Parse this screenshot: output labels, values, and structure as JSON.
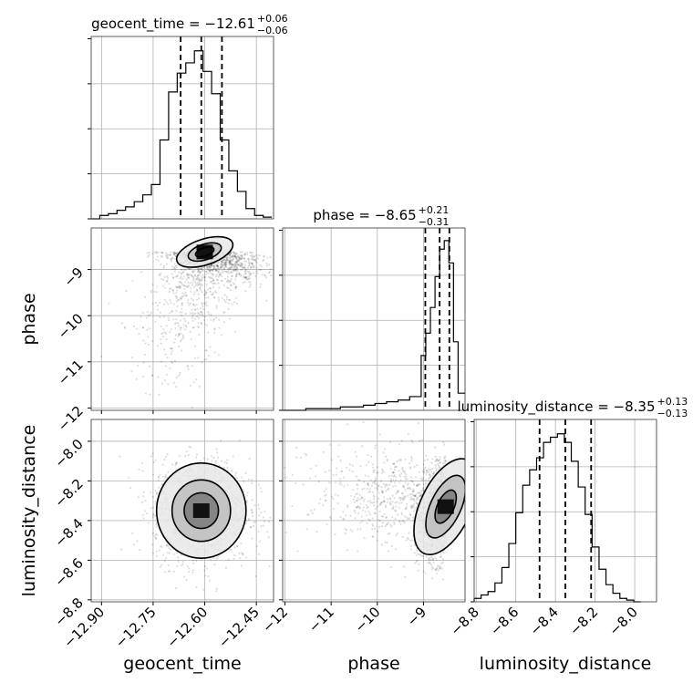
{
  "chart_data": {
    "type": "corner",
    "parameters": [
      "geocent_time",
      "phase",
      "luminosity_distance"
    ],
    "titles": [
      {
        "parameter": "geocent_time",
        "text": "geocent_time = −12.61",
        "plus": "+0.06",
        "minus": "−0.06"
      },
      {
        "parameter": "phase",
        "text": "phase = −8.65",
        "plus": "+0.21",
        "minus": "−0.31"
      },
      {
        "parameter": "luminosity_distance",
        "text": "luminosity_distance = −8.35",
        "plus": "+0.13",
        "minus": "−0.13"
      }
    ],
    "ranges": {
      "geocent_time": [
        -12.93,
        -12.4
      ],
      "phase": [
        -12.05,
        -8.1
      ],
      "luminosity_distance": [
        -8.81,
        -7.89
      ]
    },
    "ticks": {
      "geocent_time": [
        -12.9,
        -12.75,
        -12.6,
        -12.45
      ],
      "phase": [
        -12,
        -11,
        -10,
        -9
      ],
      "luminosity_distance": [
        -8.8,
        -8.6,
        -8.4,
        -8.2,
        -8.0
      ]
    },
    "tick_labels": {
      "geocent_time": [
        "−12.90",
        "−12.75",
        "−12.60",
        "−12.45"
      ],
      "phase": [
        "−12",
        "−11",
        "−10",
        "−9"
      ],
      "luminosity_distance": [
        "−8.8",
        "−8.6",
        "−8.4",
        "−8.2",
        "−8.0"
      ]
    },
    "axis_labels": {
      "geocent_time": "geocent_time",
      "phase": "phase",
      "luminosity_distance": "luminosity_distance"
    },
    "quantiles": {
      "geocent_time": [
        -12.67,
        -12.61,
        -12.55
      ],
      "phase": [
        -8.96,
        -8.65,
        -8.44
      ],
      "luminosity_distance": [
        -8.48,
        -8.35,
        -8.22
      ]
    },
    "histograms": {
      "geocent_time": {
        "edges": [
          -12.93,
          -12.905,
          -12.88,
          -12.855,
          -12.83,
          -12.805,
          -12.78,
          -12.755,
          -12.73,
          -12.705,
          -12.68,
          -12.655,
          -12.63,
          -12.605,
          -12.58,
          -12.555,
          -12.53,
          -12.505,
          -12.48,
          -12.455,
          -12.43,
          -12.405
        ],
        "counts": [
          0,
          0.02,
          0.03,
          0.05,
          0.07,
          0.1,
          0.14,
          0.2,
          0.46,
          0.74,
          0.85,
          0.91,
          0.98,
          0.86,
          0.73,
          0.46,
          0.28,
          0.16,
          0.06,
          0.02,
          0.01
        ]
      },
      "phase": {
        "edges": [
          -12.05,
          -11.8,
          -11.55,
          -11.3,
          -11.05,
          -10.8,
          -10.55,
          -10.3,
          -10.05,
          -9.8,
          -9.55,
          -9.3,
          -9.05,
          -8.95,
          -8.85,
          -8.75,
          -8.65,
          -8.55,
          -8.45,
          -8.35,
          -8.25,
          -8.1
        ],
        "counts": [
          0,
          0,
          0.01,
          0.01,
          0.01,
          0.02,
          0.02,
          0.03,
          0.04,
          0.05,
          0.06,
          0.08,
          0.32,
          0.45,
          0.6,
          0.78,
          0.94,
          0.99,
          0.86,
          0.4,
          0.1
        ]
      },
      "luminosity_distance": {
        "edges": [
          -8.81,
          -8.775,
          -8.74,
          -8.705,
          -8.67,
          -8.635,
          -8.6,
          -8.565,
          -8.53,
          -8.495,
          -8.46,
          -8.425,
          -8.39,
          -8.355,
          -8.32,
          -8.285,
          -8.25,
          -8.215,
          -8.18,
          -8.145,
          -8.11,
          -8.075,
          -8.04,
          -8.005,
          -7.97
        ],
        "counts": [
          0.02,
          0.04,
          0.06,
          0.11,
          0.2,
          0.34,
          0.52,
          0.68,
          0.77,
          0.84,
          0.93,
          0.96,
          0.98,
          0.93,
          0.82,
          0.67,
          0.51,
          0.32,
          0.19,
          0.1,
          0.05,
          0.02,
          0.01,
          0
        ]
      }
    },
    "pairs": [
      {
        "x": "geocent_time",
        "y": "phase",
        "center": [
          -12.6,
          -8.62
        ],
        "sigma": [
          0.08,
          0.45
        ],
        "rho": 0.55,
        "contour_levels": [
          {
            "rx": 0.085,
            "ry": 0.28
          },
          {
            "rx": 0.05,
            "ry": 0.17
          },
          {
            "rx": 0.028,
            "ry": 0.09
          }
        ]
      },
      {
        "x": "geocent_time",
        "y": "luminosity_distance",
        "center": [
          -12.61,
          -8.35
        ],
        "sigma": [
          0.07,
          0.13
        ],
        "rho": 0.0,
        "contour_levels": [
          {
            "rx": 0.13,
            "ry": 0.24
          },
          {
            "rx": 0.085,
            "ry": 0.155
          },
          {
            "rx": 0.05,
            "ry": 0.09
          }
        ]
      },
      {
        "x": "phase",
        "y": "luminosity_distance",
        "center": [
          -8.52,
          -8.33
        ],
        "sigma": [
          0.55,
          0.13
        ],
        "rho": -0.35,
        "contour_levels": [
          {
            "rx": 0.55,
            "ry": 0.26
          },
          {
            "rx": 0.33,
            "ry": 0.17
          },
          {
            "rx": 0.18,
            "ry": 0.09
          }
        ]
      }
    ],
    "grid": true
  }
}
